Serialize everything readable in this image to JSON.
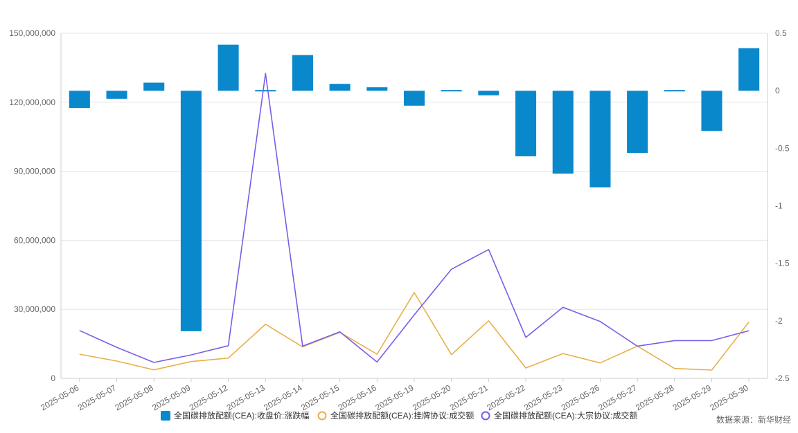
{
  "chart_data": {
    "type": "bar+line",
    "categories": [
      "2025-05-06",
      "2025-05-07",
      "2025-05-08",
      "2025-05-09",
      "2025-05-12",
      "2025-05-13",
      "2025-05-14",
      "2025-05-15",
      "2025-05-16",
      "2025-05-19",
      "2025-05-20",
      "2025-05-21",
      "2025-05-22",
      "2025-05-23",
      "2025-05-26",
      "2025-05-27",
      "2025-05-28",
      "2025-05-29",
      "2025-05-30"
    ],
    "left_axis": {
      "ylim": [
        0,
        150000000
      ],
      "ticks": [
        0,
        30000000,
        60000000,
        90000000,
        120000000,
        150000000
      ],
      "tick_labels": [
        "0",
        "30,000,000",
        "60,000,000",
        "90,000,000",
        "120,000,000",
        "150,000,000"
      ]
    },
    "right_axis": {
      "ylim": [
        -2.5,
        0.5
      ],
      "ticks": [
        -2.5,
        -2,
        -1.5,
        -1,
        -0.5,
        0,
        0.5
      ],
      "tick_labels": [
        "-2.5",
        "-2",
        "-1.5",
        "-1",
        "-0.5",
        "0",
        "0.5"
      ]
    },
    "series": [
      {
        "name": "全国碳排放配额(CEA):收盘价:涨跌幅",
        "type": "bar",
        "axis": "right",
        "color": "#0a88cc",
        "values": [
          -0.15,
          -0.07,
          0.07,
          -2.09,
          0.4,
          0.0,
          0.31,
          0.06,
          0.03,
          -0.13,
          0.01,
          -0.04,
          -0.57,
          -0.72,
          -0.84,
          -0.54,
          0.01,
          -0.35,
          0.37
        ]
      },
      {
        "name": "全国碳排放配额(CEA):挂牌协议:成交额",
        "type": "line",
        "axis": "left",
        "color": "#e8b04a",
        "values": [
          10500000,
          7500000,
          3700000,
          7300000,
          8800000,
          23500000,
          13700000,
          20000000,
          10500000,
          37300000,
          10300000,
          25000000,
          4500000,
          10800000,
          6700000,
          14000000,
          4300000,
          3600000,
          24500000
        ]
      },
      {
        "name": "全国碳排放配额(CEA):大宗协议:成交额",
        "type": "line",
        "axis": "left",
        "color": "#7b5ce8",
        "values": [
          20800000,
          13500000,
          6900000,
          10200000,
          14200000,
          132500000,
          14000000,
          20200000,
          7100000,
          27600000,
          47400000,
          56000000,
          17800000,
          30900000,
          24700000,
          14000000,
          16400000,
          16400000,
          20700000
        ]
      }
    ]
  },
  "source_note": "数据来源：新华财经"
}
